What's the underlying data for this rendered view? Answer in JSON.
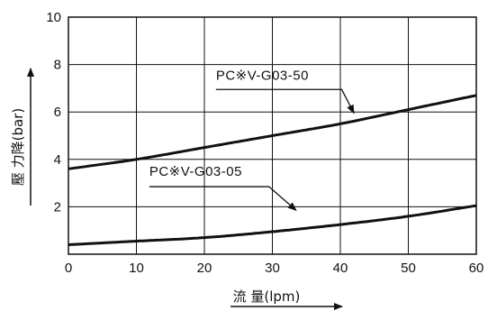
{
  "chart_data": {
    "type": "line",
    "xlabel": "流 量(lpm)",
    "ylabel": "壓 力降(bar)",
    "xlim": [
      0,
      60
    ],
    "ylim": [
      0,
      10
    ],
    "x_ticks": [
      "0",
      "10",
      "20",
      "30",
      "40",
      "50",
      "60"
    ],
    "y_ticks": [
      "2",
      "4",
      "6",
      "8",
      "10"
    ],
    "grid": true,
    "series": [
      {
        "name": "PC※V-G03-50",
        "x": [
          0,
          10,
          20,
          30,
          40,
          50,
          60
        ],
        "values": [
          3.6,
          4.0,
          4.5,
          5.0,
          5.5,
          6.1,
          6.7
        ]
      },
      {
        "name": "PC※V-G03-05",
        "x": [
          0,
          10,
          20,
          30,
          40,
          50,
          60
        ],
        "values": [
          0.4,
          0.55,
          0.7,
          0.95,
          1.25,
          1.6,
          2.05
        ]
      }
    ]
  }
}
